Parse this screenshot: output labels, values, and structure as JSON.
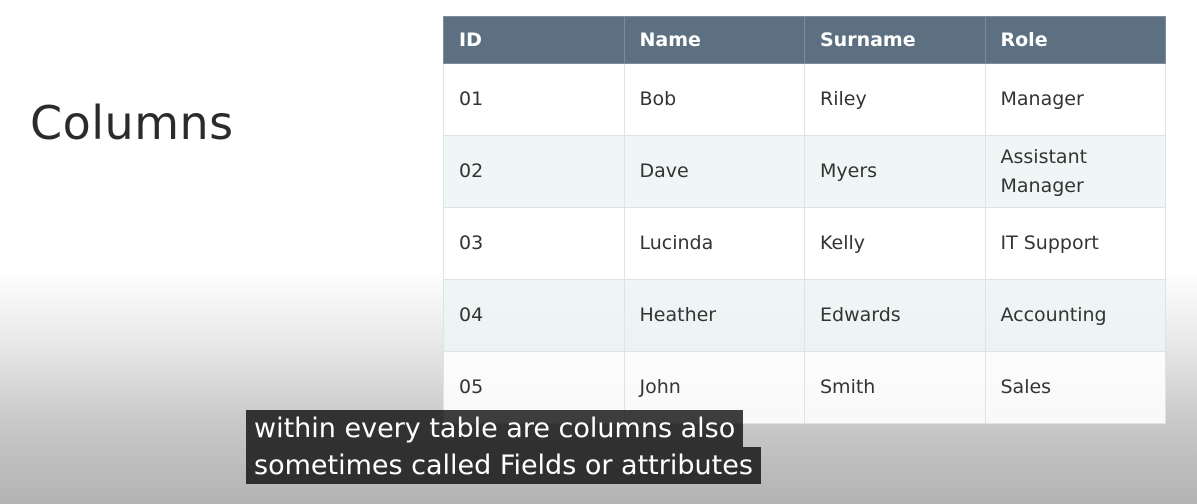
{
  "slide": {
    "title": "Columns"
  },
  "table": {
    "headers": [
      "ID",
      "Name",
      "Surname",
      "Role"
    ],
    "rows": [
      [
        "01",
        "Bob",
        "Riley",
        "Manager"
      ],
      [
        "02",
        "Dave",
        "Myers",
        "Assistant Manager"
      ],
      [
        "03",
        "Lucinda",
        "Kelly",
        "IT Support"
      ],
      [
        "04",
        "Heather",
        "Edwards",
        "Accounting"
      ],
      [
        "05",
        "John",
        "Smith",
        "Sales"
      ]
    ]
  },
  "caption": {
    "line1": "within every table are columns also",
    "line2": "sometimes called Fields or attributes"
  },
  "colors": {
    "header_bg": "#5d7081",
    "alt_row_bg": "#ecf4f5",
    "caption_bg": "#080808"
  }
}
